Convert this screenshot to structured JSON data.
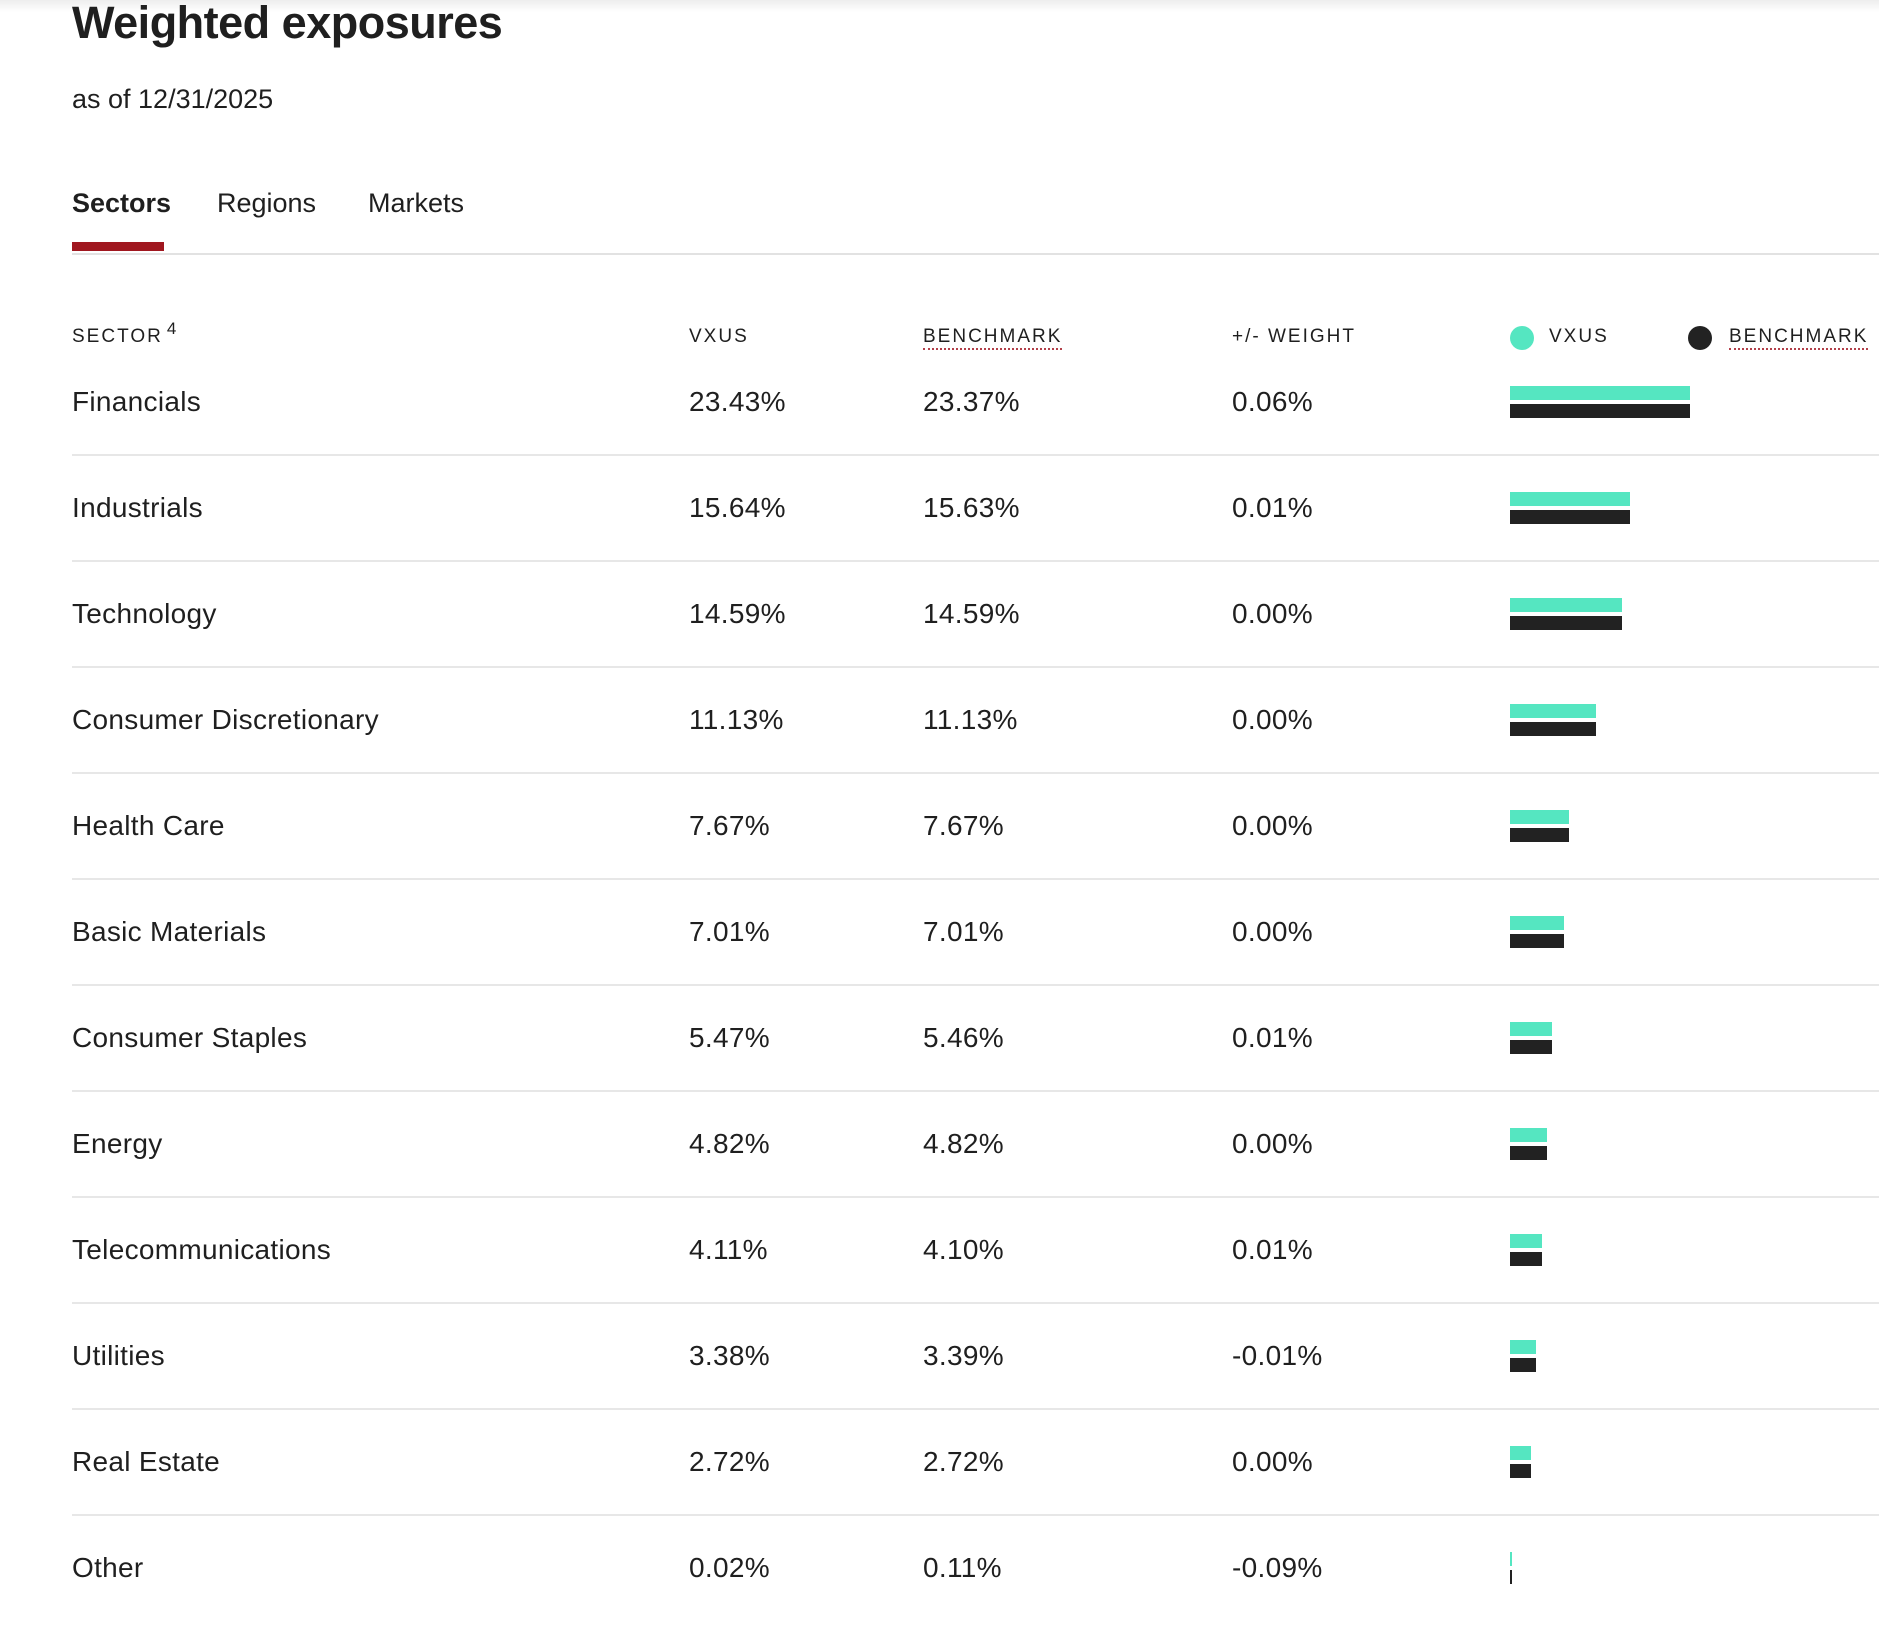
{
  "header": {
    "title": "Weighted exposures",
    "as_of": "as of 12/31/2025"
  },
  "tabs": [
    {
      "label": "Sectors",
      "active": true
    },
    {
      "label": "Regions",
      "active": false
    },
    {
      "label": "Markets",
      "active": false
    }
  ],
  "colors": {
    "fund": "#55e6c1",
    "benchmark": "#222222",
    "accent": "#a0171f"
  },
  "table": {
    "columns": {
      "sector": "SECTOR",
      "sector_footnote": "4",
      "fund": "VXUS",
      "benchmark": "BENCHMARK",
      "diff": "+/- WEIGHT"
    },
    "legend": {
      "fund": "VXUS",
      "benchmark": "BENCHMARK"
    },
    "rows": [
      {
        "sector": "Financials",
        "fund": "23.43%",
        "benchmark": "23.37%",
        "diff": "0.06%"
      },
      {
        "sector": "Industrials",
        "fund": "15.64%",
        "benchmark": "15.63%",
        "diff": "0.01%"
      },
      {
        "sector": "Technology",
        "fund": "14.59%",
        "benchmark": "14.59%",
        "diff": "0.00%"
      },
      {
        "sector": "Consumer Discretionary",
        "fund": "11.13%",
        "benchmark": "11.13%",
        "diff": "0.00%"
      },
      {
        "sector": "Health Care",
        "fund": "7.67%",
        "benchmark": "7.67%",
        "diff": "0.00%"
      },
      {
        "sector": "Basic Materials",
        "fund": "7.01%",
        "benchmark": "7.01%",
        "diff": "0.00%"
      },
      {
        "sector": "Consumer Staples",
        "fund": "5.47%",
        "benchmark": "5.46%",
        "diff": "0.01%"
      },
      {
        "sector": "Energy",
        "fund": "4.82%",
        "benchmark": "4.82%",
        "diff": "0.00%"
      },
      {
        "sector": "Telecommunications",
        "fund": "4.11%",
        "benchmark": "4.10%",
        "diff": "0.01%"
      },
      {
        "sector": "Utilities",
        "fund": "3.38%",
        "benchmark": "3.39%",
        "diff": "-0.01%"
      },
      {
        "sector": "Real Estate",
        "fund": "2.72%",
        "benchmark": "2.72%",
        "diff": "0.00%"
      },
      {
        "sector": "Other",
        "fund": "0.02%",
        "benchmark": "0.11%",
        "diff": "-0.09%"
      }
    ]
  },
  "chart_data": {
    "type": "bar",
    "categories": [
      "Financials",
      "Industrials",
      "Technology",
      "Consumer Discretionary",
      "Health Care",
      "Basic Materials",
      "Consumer Staples",
      "Energy",
      "Telecommunications",
      "Utilities",
      "Real Estate",
      "Other"
    ],
    "series": [
      {
        "name": "VXUS",
        "values": [
          23.43,
          15.64,
          14.59,
          11.13,
          7.67,
          7.01,
          5.47,
          4.82,
          4.11,
          3.38,
          2.72,
          0.02
        ]
      },
      {
        "name": "BENCHMARK",
        "values": [
          23.37,
          15.63,
          14.59,
          11.13,
          7.67,
          7.01,
          5.46,
          4.82,
          4.1,
          3.39,
          2.72,
          0.11
        ]
      }
    ],
    "orientation": "horizontal",
    "legend": "top-right"
  }
}
